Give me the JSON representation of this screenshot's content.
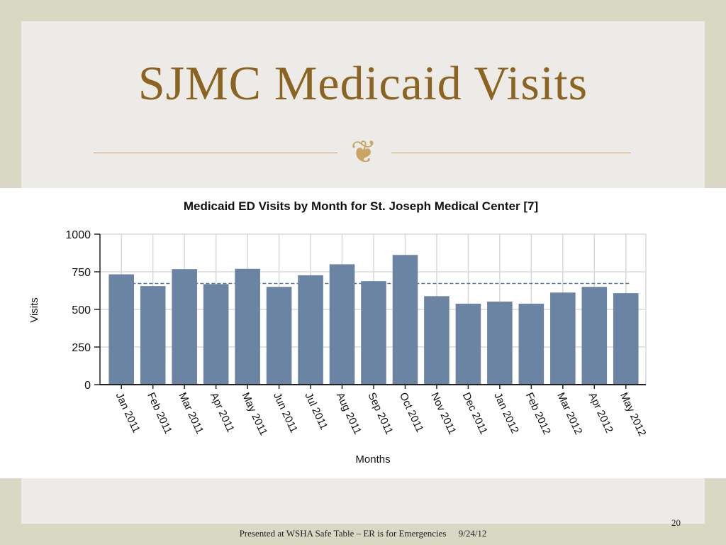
{
  "slide": {
    "title": "SJMC Medicaid Visits",
    "ornament_icon": "fleuron-icon",
    "page_number": "20",
    "footer_text": "Presented at WSHA Safe Table – ER is for Emergencies",
    "footer_date": "9/24/12"
  },
  "colors": {
    "title": "#8a6420",
    "accent": "#c9a463",
    "bar": "#6b84a3",
    "reference_line": "#5c7898",
    "grid": "#d8d8d8"
  },
  "chart_data": {
    "type": "bar",
    "title": "Medicaid ED Visits by Month for St. Joseph Medical Center [7]",
    "xlabel": "Months",
    "ylabel": "Visits",
    "ylim": [
      0,
      1000
    ],
    "yticks": [
      0,
      250,
      500,
      750,
      1000
    ],
    "grid": true,
    "categories": [
      "Jan 2011",
      "Feb 2011",
      "Mar 2011",
      "Apr 2011",
      "May 2011",
      "Jun 2011",
      "Jul 2011",
      "Aug 2011",
      "Sep 2011",
      "Oct 2011",
      "Nov 2011",
      "Dec 2011",
      "Jan 2012",
      "Feb 2012",
      "Mar 2012",
      "Apr 2012",
      "May 2012"
    ],
    "values": [
      733,
      655,
      768,
      668,
      770,
      650,
      727,
      800,
      688,
      862,
      588,
      538,
      552,
      538,
      612,
      650,
      608
    ],
    "reference_line": 672
  }
}
